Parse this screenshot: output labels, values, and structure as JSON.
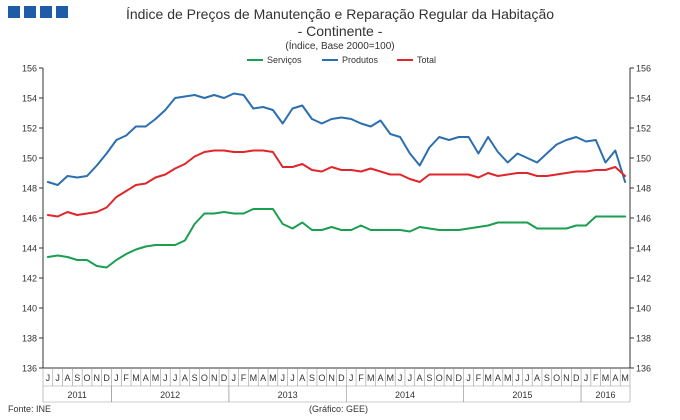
{
  "header": {
    "title": "Índice de Preços de Manutenção e Reparação Regular da Habitação",
    "subtitle": "- Continente -",
    "unit": "(Índice, Base 2000=100)"
  },
  "footer": {
    "source": "Fonte: INE",
    "credit": "(Gráfico: GEE)"
  },
  "chart_data": {
    "type": "line",
    "yticks": [
      136,
      138,
      140,
      142,
      144,
      146,
      148,
      150,
      152,
      154,
      156
    ],
    "ylim": [
      136,
      156
    ],
    "grid": false,
    "legend_position": "top-center",
    "month_labels": [
      "J",
      "J",
      "A",
      "S",
      "O",
      "N",
      "D",
      "J",
      "F",
      "M",
      "A",
      "M",
      "J",
      "J",
      "A",
      "S",
      "O",
      "N",
      "D",
      "J",
      "F",
      "M",
      "A",
      "M",
      "J",
      "J",
      "A",
      "S",
      "O",
      "N",
      "D",
      "J",
      "F",
      "M",
      "A",
      "M",
      "J",
      "J",
      "A",
      "S",
      "O",
      "N",
      "D",
      "J",
      "F",
      "M",
      "A",
      "M",
      "J",
      "J",
      "A",
      "S",
      "O",
      "N",
      "D",
      "J",
      "F",
      "M",
      "A",
      "M"
    ],
    "year_labels": [
      {
        "label": "2011",
        "start": 0,
        "end": 7
      },
      {
        "label": "2012",
        "start": 7,
        "end": 19
      },
      {
        "label": "2013",
        "start": 19,
        "end": 31
      },
      {
        "label": "2014",
        "start": 31,
        "end": 43
      },
      {
        "label": "2015",
        "start": 43,
        "end": 55
      },
      {
        "label": "2016",
        "start": 55,
        "end": 60
      }
    ],
    "series": [
      {
        "name": "Serviços",
        "color": "#1a9e50",
        "values": [
          143.4,
          143.5,
          143.4,
          143.2,
          143.2,
          142.8,
          142.7,
          143.2,
          143.6,
          143.9,
          144.1,
          144.2,
          144.2,
          144.2,
          144.5,
          145.6,
          146.3,
          146.3,
          146.4,
          146.3,
          146.3,
          146.6,
          146.6,
          146.6,
          145.6,
          145.3,
          145.7,
          145.2,
          145.2,
          145.4,
          145.2,
          145.2,
          145.5,
          145.2,
          145.2,
          145.2,
          145.2,
          145.1,
          145.4,
          145.3,
          145.2,
          145.2,
          145.2,
          145.3,
          145.4,
          145.5,
          145.7,
          145.7,
          145.7,
          145.7,
          145.3,
          145.3,
          145.3,
          145.3,
          145.5,
          145.5,
          146.1,
          146.1,
          146.1,
          146.1
        ]
      },
      {
        "name": "Produtos",
        "color": "#2b6fb0",
        "values": [
          148.4,
          148.2,
          148.8,
          148.7,
          148.8,
          149.5,
          150.3,
          151.2,
          151.5,
          152.1,
          152.1,
          152.6,
          153.2,
          154.0,
          154.1,
          154.2,
          154.0,
          154.2,
          154.0,
          154.3,
          154.2,
          153.3,
          153.4,
          153.2,
          152.3,
          153.3,
          153.5,
          152.6,
          152.3,
          152.6,
          152.7,
          152.6,
          152.3,
          152.1,
          152.5,
          151.6,
          151.4,
          150.3,
          149.5,
          150.7,
          151.4,
          151.2,
          151.4,
          151.4,
          150.3,
          151.4,
          150.4,
          149.7,
          150.3,
          150.0,
          149.7,
          150.3,
          150.9,
          151.2,
          151.4,
          151.1,
          151.2,
          149.7,
          150.5,
          148.4
        ]
      },
      {
        "name": "Total",
        "color": "#e0262a",
        "values": [
          146.2,
          146.1,
          146.4,
          146.2,
          146.3,
          146.4,
          146.7,
          147.4,
          147.8,
          148.2,
          148.3,
          148.7,
          148.9,
          149.3,
          149.6,
          150.1,
          150.4,
          150.5,
          150.5,
          150.4,
          150.4,
          150.5,
          150.5,
          150.4,
          149.4,
          149.4,
          149.6,
          149.2,
          149.1,
          149.4,
          149.2,
          149.2,
          149.1,
          149.3,
          149.1,
          148.9,
          148.9,
          148.6,
          148.4,
          148.9,
          148.9,
          148.9,
          148.9,
          148.9,
          148.7,
          149.0,
          148.8,
          148.9,
          149.0,
          149.0,
          148.8,
          148.8,
          148.9,
          149.0,
          149.1,
          149.1,
          149.2,
          149.2,
          149.4,
          148.8
        ]
      }
    ]
  }
}
